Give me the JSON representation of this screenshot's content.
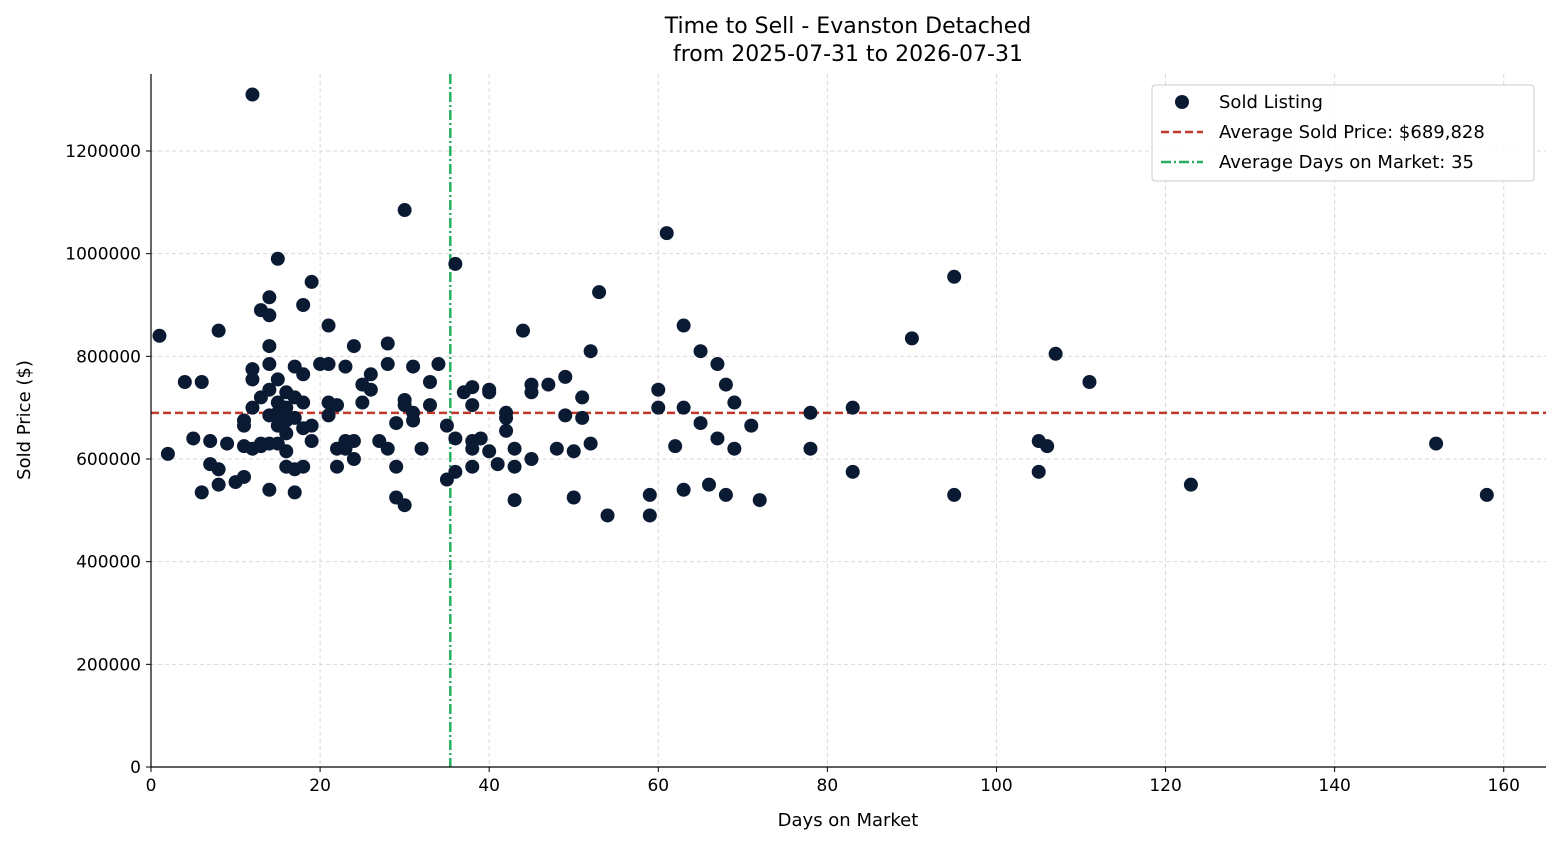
{
  "colors": {
    "points": "#0b1a33",
    "avg_price_line": "#c0392b",
    "avg_days_line": "#27ae60",
    "grid": "#d9d9d9"
  },
  "chart_data": {
    "type": "scatter",
    "title_line1": "Time to Sell - Evanston Detached",
    "title_line2": "from 2025-07-31 to 2026-07-31",
    "xlabel": "Days on Market",
    "ylabel": "Sold Price ($)",
    "xlim": [
      0,
      165
    ],
    "ylim": [
      0,
      1350000
    ],
    "xticks": [
      0,
      20,
      40,
      60,
      80,
      100,
      120,
      140,
      160
    ],
    "yticks": [
      0,
      200000,
      400000,
      600000,
      800000,
      1000000,
      1200000
    ],
    "grid": true,
    "legend_position": "top-right",
    "legend": {
      "points": "Sold Listing",
      "avg_price": "Average Sold Price: $689,828",
      "avg_days": "Average Days on Market: 35"
    },
    "avg_price": 689828,
    "avg_days": 35.4,
    "series": [
      {
        "name": "Sold Listing",
        "points": [
          [
            1,
            840000
          ],
          [
            2,
            610000
          ],
          [
            4,
            750000
          ],
          [
            5,
            640000
          ],
          [
            6,
            750000
          ],
          [
            6,
            535000
          ],
          [
            7,
            590000
          ],
          [
            7,
            635000
          ],
          [
            8,
            580000
          ],
          [
            8,
            550000
          ],
          [
            8,
            850000
          ],
          [
            9,
            630000
          ],
          [
            10,
            555000
          ],
          [
            11,
            565000
          ],
          [
            11,
            665000
          ],
          [
            11,
            675000
          ],
          [
            11,
            625000
          ],
          [
            12,
            1310000
          ],
          [
            12,
            775000
          ],
          [
            12,
            755000
          ],
          [
            12,
            700000
          ],
          [
            12,
            620000
          ],
          [
            13,
            890000
          ],
          [
            13,
            720000
          ],
          [
            13,
            630000
          ],
          [
            13,
            625000
          ],
          [
            14,
            915000
          ],
          [
            14,
            880000
          ],
          [
            14,
            820000
          ],
          [
            14,
            785000
          ],
          [
            14,
            735000
          ],
          [
            14,
            685000
          ],
          [
            14,
            630000
          ],
          [
            14,
            540000
          ],
          [
            15,
            990000
          ],
          [
            15,
            755000
          ],
          [
            15,
            710000
          ],
          [
            15,
            690000
          ],
          [
            15,
            665000
          ],
          [
            15,
            630000
          ],
          [
            16,
            730000
          ],
          [
            16,
            700000
          ],
          [
            16,
            675000
          ],
          [
            16,
            650000
          ],
          [
            16,
            615000
          ],
          [
            16,
            585000
          ],
          [
            17,
            780000
          ],
          [
            17,
            720000
          ],
          [
            17,
            680000
          ],
          [
            17,
            580000
          ],
          [
            17,
            535000
          ],
          [
            18,
            900000
          ],
          [
            18,
            765000
          ],
          [
            18,
            710000
          ],
          [
            18,
            660000
          ],
          [
            18,
            585000
          ],
          [
            19,
            945000
          ],
          [
            19,
            665000
          ],
          [
            19,
            635000
          ],
          [
            20,
            785000
          ],
          [
            21,
            860000
          ],
          [
            21,
            785000
          ],
          [
            21,
            710000
          ],
          [
            21,
            685000
          ],
          [
            22,
            705000
          ],
          [
            22,
            620000
          ],
          [
            22,
            585000
          ],
          [
            23,
            780000
          ],
          [
            23,
            635000
          ],
          [
            23,
            620000
          ],
          [
            24,
            820000
          ],
          [
            24,
            635000
          ],
          [
            24,
            600000
          ],
          [
            25,
            745000
          ],
          [
            25,
            710000
          ],
          [
            26,
            765000
          ],
          [
            26,
            735000
          ],
          [
            27,
            635000
          ],
          [
            28,
            825000
          ],
          [
            28,
            785000
          ],
          [
            28,
            620000
          ],
          [
            29,
            670000
          ],
          [
            29,
            585000
          ],
          [
            29,
            525000
          ],
          [
            30,
            1085000
          ],
          [
            30,
            715000
          ],
          [
            30,
            705000
          ],
          [
            30,
            510000
          ],
          [
            31,
            780000
          ],
          [
            31,
            690000
          ],
          [
            31,
            675000
          ],
          [
            32,
            620000
          ],
          [
            33,
            750000
          ],
          [
            33,
            705000
          ],
          [
            34,
            785000
          ],
          [
            35,
            665000
          ],
          [
            35,
            560000
          ],
          [
            36,
            980000
          ],
          [
            36,
            640000
          ],
          [
            36,
            575000
          ],
          [
            37,
            730000
          ],
          [
            38,
            740000
          ],
          [
            38,
            705000
          ],
          [
            38,
            635000
          ],
          [
            38,
            620000
          ],
          [
            38,
            585000
          ],
          [
            39,
            640000
          ],
          [
            40,
            735000
          ],
          [
            40,
            730000
          ],
          [
            40,
            615000
          ],
          [
            41,
            590000
          ],
          [
            42,
            690000
          ],
          [
            42,
            680000
          ],
          [
            42,
            655000
          ],
          [
            43,
            620000
          ],
          [
            43,
            585000
          ],
          [
            43,
            520000
          ],
          [
            44,
            850000
          ],
          [
            45,
            745000
          ],
          [
            45,
            730000
          ],
          [
            45,
            600000
          ],
          [
            47,
            745000
          ],
          [
            48,
            620000
          ],
          [
            49,
            760000
          ],
          [
            49,
            685000
          ],
          [
            50,
            615000
          ],
          [
            50,
            525000
          ],
          [
            51,
            720000
          ],
          [
            51,
            680000
          ],
          [
            52,
            810000
          ],
          [
            52,
            630000
          ],
          [
            53,
            925000
          ],
          [
            54,
            490000
          ],
          [
            59,
            530000
          ],
          [
            59,
            490000
          ],
          [
            60,
            735000
          ],
          [
            60,
            700000
          ],
          [
            61,
            1040000
          ],
          [
            62,
            625000
          ],
          [
            63,
            860000
          ],
          [
            63,
            700000
          ],
          [
            63,
            540000
          ],
          [
            65,
            810000
          ],
          [
            65,
            670000
          ],
          [
            66,
            550000
          ],
          [
            67,
            785000
          ],
          [
            67,
            640000
          ],
          [
            68,
            745000
          ],
          [
            68,
            530000
          ],
          [
            69,
            710000
          ],
          [
            69,
            620000
          ],
          [
            71,
            665000
          ],
          [
            72,
            520000
          ],
          [
            78,
            690000
          ],
          [
            78,
            620000
          ],
          [
            83,
            700000
          ],
          [
            83,
            575000
          ],
          [
            90,
            835000
          ],
          [
            95,
            955000
          ],
          [
            95,
            530000
          ],
          [
            105,
            635000
          ],
          [
            105,
            575000
          ],
          [
            106,
            625000
          ],
          [
            107,
            805000
          ],
          [
            111,
            750000
          ],
          [
            123,
            550000
          ],
          [
            152,
            630000
          ],
          [
            158,
            530000
          ]
        ]
      }
    ]
  }
}
